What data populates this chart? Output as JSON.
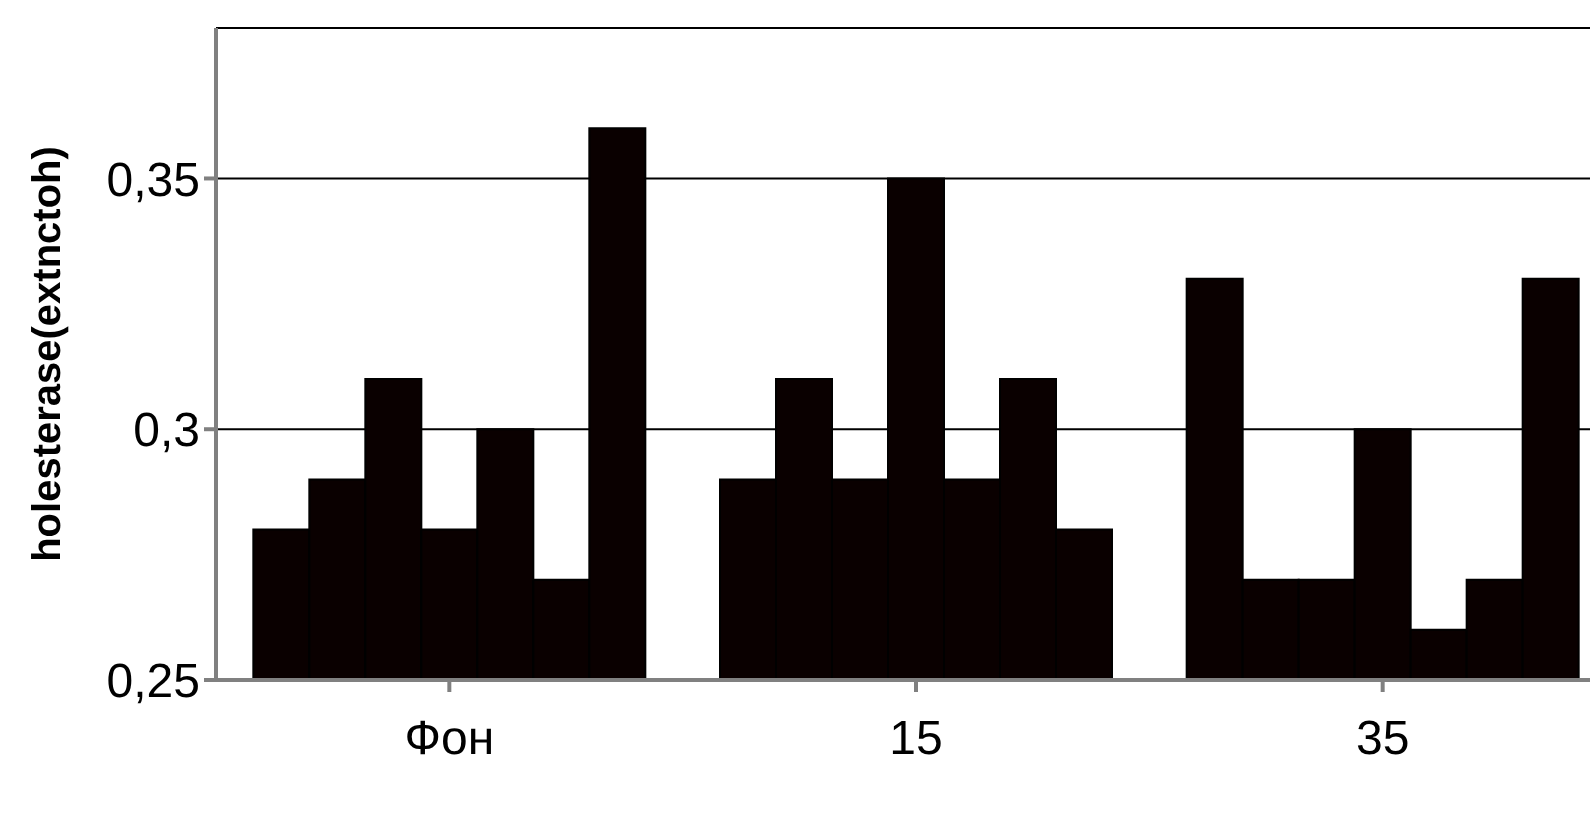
{
  "chart_data": {
    "type": "bar",
    "ylabel": "holesterase(extnctoh)",
    "categories": [
      "Фон",
      "15",
      "35"
    ],
    "series": [
      {
        "color": "#0a0000",
        "values": [
          0.28,
          0.29,
          0.33
        ]
      },
      {
        "color": "#0a0000",
        "values": [
          0.29,
          0.31,
          0.27
        ]
      },
      {
        "color": "#0a0000",
        "values": [
          0.31,
          0.29,
          0.27
        ]
      },
      {
        "color": "#0a0000",
        "values": [
          0.28,
          0.35,
          0.3
        ]
      },
      {
        "color": "#0a0000",
        "values": [
          0.3,
          0.29,
          0.26
        ]
      },
      {
        "color": "#0a0000",
        "values": [
          0.27,
          0.31,
          0.27
        ]
      },
      {
        "color": "#0a0000",
        "values": [
          0.36,
          0.28,
          0.33
        ]
      }
    ],
    "ylim": [
      0.25,
      0.38
    ],
    "yticks": [
      {
        "value": 0.25,
        "label": "0,25"
      },
      {
        "value": 0.3,
        "label": "0,3"
      },
      {
        "value": 0.35,
        "label": "0,35"
      }
    ],
    "grid": "y",
    "legend": false
  }
}
